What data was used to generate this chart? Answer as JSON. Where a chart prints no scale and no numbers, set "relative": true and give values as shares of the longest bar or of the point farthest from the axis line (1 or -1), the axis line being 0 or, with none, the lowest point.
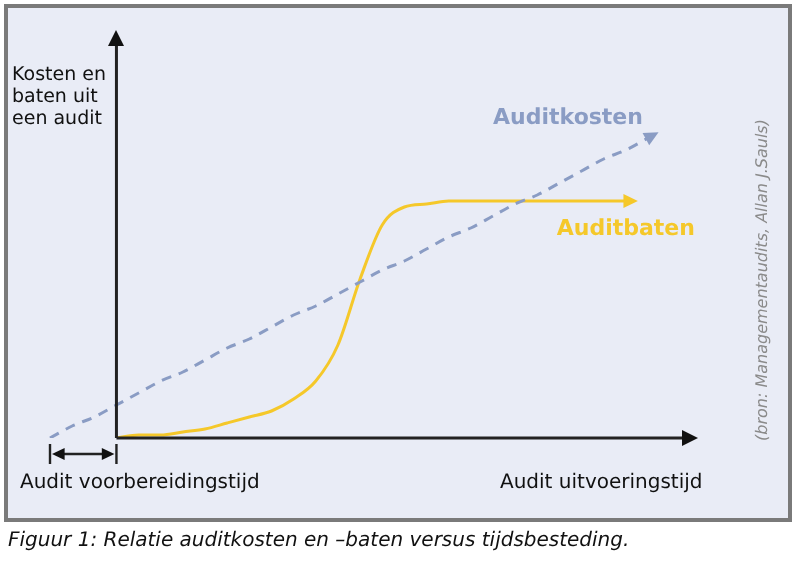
{
  "chart_data": {
    "type": "line",
    "relative": true,
    "xlabel": "Audit uitvoeringstijd",
    "ylabel": "Kosten en baten uit een audit",
    "categories": [
      null,
      null,
      null,
      null,
      null,
      null,
      null,
      null,
      null,
      null,
      null,
      null,
      null,
      null,
      null,
      null,
      null,
      null,
      null,
      null,
      null,
      null,
      null,
      null,
      null,
      null,
      null,
      null
    ],
    "series": [
      {
        "name": "Auditkosten",
        "color": "#8a9cc4",
        "line_style": "dashed",
        "values": [
          0,
          0.04,
          0.07,
          0.11,
          0.15,
          0.19,
          0.22,
          0.26,
          0.3,
          0.33,
          0.37,
          0.41,
          0.44,
          0.48,
          0.52,
          0.56,
          0.59,
          0.63,
          0.67,
          0.7,
          0.74,
          0.78,
          0.81,
          0.85,
          0.89,
          0.93,
          0.96,
          1
        ]
      },
      {
        "name": "Auditbaten",
        "color": "#f5c82a",
        "line_style": "solid",
        "values": [
          null,
          null,
          null,
          0,
          0.01,
          0.01,
          0.02,
          0.03,
          0.05,
          0.07,
          0.09,
          0.13,
          0.19,
          0.31,
          0.53,
          0.71,
          0.77,
          0.78,
          0.79,
          0.79,
          0.79,
          0.79,
          0.79,
          0.79,
          0.79,
          0.79,
          0.79,
          null
        ]
      }
    ],
    "legend": false,
    "marker": "none",
    "annotations": [
      "Audit voorbereidingstijd",
      "(bron: Managementaudits, Allan J.Sauls)",
      "Figuur 1: Relatie auditkosten en –baten versus tijdsbesteding."
    ]
  }
}
